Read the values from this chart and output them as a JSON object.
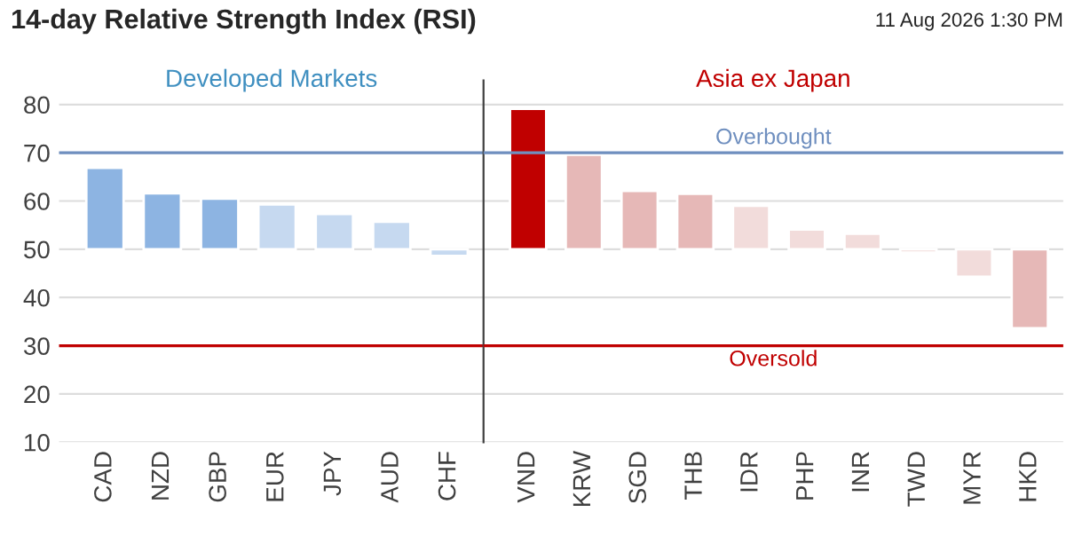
{
  "chart_data": [
    {
      "type": "bar",
      "title": "14-day Relative Strength Index (RSI)",
      "subtitle": "Developed Markets",
      "categories": [
        "CAD",
        "NZD",
        "GBP",
        "EUR",
        "JPY",
        "AUD",
        "CHF"
      ],
      "base": [
        50,
        50,
        50,
        50,
        50,
        50,
        50
      ],
      "values": [
        16.9,
        11.6,
        10.5,
        9.3,
        7.3,
        5.7,
        -1.4
      ],
      "colors": [
        "#8db4e2",
        "#8db4e2",
        "#8db4e2",
        "#c6d9f0",
        "#c6d9f0",
        "#c6d9f0",
        "#c6d9f0"
      ],
      "ylim": [
        10,
        85
      ],
      "yticks": [
        10,
        20,
        30,
        40,
        50,
        60,
        70,
        80
      ],
      "grid": "y",
      "legend": false,
      "ref_lines": [
        {
          "axis": "y",
          "value": 70,
          "color": "#6f8fbf"
        },
        {
          "axis": "y",
          "value": 30,
          "color": "#c00000"
        }
      ]
    },
    {
      "type": "bar",
      "subtitle": "Asia ex Japan",
      "annotations": [
        "11 Aug 2026 1:30 PM"
      ],
      "categories": [
        "VND",
        "KRW",
        "SGD",
        "THB",
        "IDR",
        "PHP",
        "INR",
        "TWD",
        "MYR",
        "HKD"
      ],
      "base": [
        50,
        50,
        50,
        50,
        50,
        50,
        50,
        50,
        50,
        50
      ],
      "values": [
        29.1,
        19.6,
        12.1,
        11.5,
        9.0,
        4.1,
        3.2,
        -0.7,
        -5.7,
        -16.4
      ],
      "colors": [
        "#c00000",
        "#e6b8b7",
        "#e6b8b7",
        "#e6b8b7",
        "#f2dcdb",
        "#f2dcdb",
        "#f2dcdb",
        "#f2dcdb",
        "#f2dcdb",
        "#e6b8b7"
      ],
      "ylim": [
        10,
        85
      ],
      "yticks": [
        10,
        20,
        30,
        40,
        50,
        60,
        70,
        80
      ],
      "grid": "y",
      "legend": false,
      "tick_labels": "x",
      "ref_lines": [
        {
          "axis": "y",
          "value": 70,
          "label": "Overbought",
          "color": "#6f8fbf"
        },
        {
          "axis": "y",
          "value": 30,
          "label": "Oversold",
          "color": "#c00000"
        }
      ]
    }
  ]
}
